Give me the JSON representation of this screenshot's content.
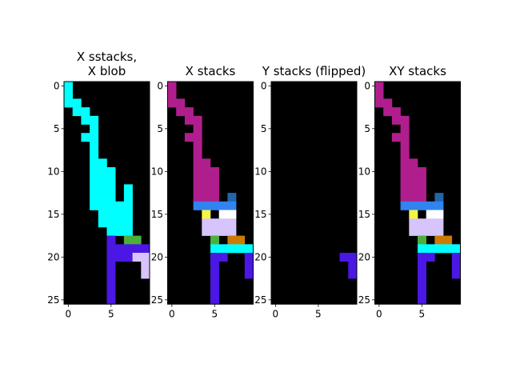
{
  "figure": {
    "background": "#ffffff",
    "panel_background": "#000000"
  },
  "chart_data": [
    {
      "type": "heatmap",
      "title_lines": [
        "X sstacks,",
        "X blob"
      ],
      "grid_shape": [
        26,
        10
      ],
      "xticks": [
        0,
        5
      ],
      "yticks": [
        0,
        5,
        10,
        15,
        20,
        25
      ],
      "cells": [
        {
          "x": 0,
          "y": 0,
          "w": 1,
          "h": 3,
          "color": "#00ffff"
        },
        {
          "x": 1,
          "y": 2,
          "w": 1,
          "h": 1,
          "color": "#00ffff"
        },
        {
          "x": 1,
          "y": 3,
          "w": 2,
          "h": 1,
          "color": "#00ffff"
        },
        {
          "x": 2,
          "y": 4,
          "w": 2,
          "h": 1,
          "color": "#00ffff"
        },
        {
          "x": 3,
          "y": 5,
          "w": 1,
          "h": 1,
          "color": "#00ffff"
        },
        {
          "x": 2,
          "y": 6,
          "w": 2,
          "h": 1,
          "color": "#00ffff"
        },
        {
          "x": 3,
          "y": 7,
          "w": 1,
          "h": 2,
          "color": "#00ffff"
        },
        {
          "x": 3,
          "y": 9,
          "w": 2,
          "h": 1,
          "color": "#00ffff"
        },
        {
          "x": 3,
          "y": 10,
          "w": 3,
          "h": 2,
          "color": "#00ffff"
        },
        {
          "x": 3,
          "y": 12,
          "w": 3,
          "h": 1,
          "color": "#00ffff"
        },
        {
          "x": 7,
          "y": 12,
          "w": 1,
          "h": 1,
          "color": "#00ffff"
        },
        {
          "x": 3,
          "y": 13,
          "w": 3,
          "h": 2,
          "color": "#00ffff"
        },
        {
          "x": 7,
          "y": 13,
          "w": 1,
          "h": 1,
          "color": "#00ffff"
        },
        {
          "x": 6,
          "y": 14,
          "w": 2,
          "h": 1,
          "color": "#00ffff"
        },
        {
          "x": 4,
          "y": 15,
          "w": 4,
          "h": 2,
          "color": "#00ffff"
        },
        {
          "x": 5,
          "y": 17,
          "w": 3,
          "h": 1,
          "color": "#00ffff"
        },
        {
          "x": 7,
          "y": 18,
          "w": 2,
          "h": 1,
          "color": "#4caf3a"
        },
        {
          "x": 5,
          "y": 18,
          "w": 1,
          "h": 1,
          "color": "#4a17e4"
        },
        {
          "x": 5,
          "y": 19,
          "w": 5,
          "h": 1,
          "color": "#4a17e4"
        },
        {
          "x": 5,
          "y": 20,
          "w": 3,
          "h": 1,
          "color": "#4a17e4"
        },
        {
          "x": 8,
          "y": 20,
          "w": 2,
          "h": 1,
          "color": "#d6c4fb"
        },
        {
          "x": 5,
          "y": 21,
          "w": 1,
          "h": 5,
          "color": "#4a17e4"
        },
        {
          "x": 9,
          "y": 21,
          "w": 1,
          "h": 2,
          "color": "#d6c4fb"
        }
      ]
    },
    {
      "type": "heatmap",
      "title_lines": [
        "X stacks"
      ],
      "grid_shape": [
        26,
        10
      ],
      "xticks": [
        0,
        5
      ],
      "yticks": [
        0,
        5,
        10,
        15,
        20,
        25
      ],
      "cells": [
        {
          "x": 0,
          "y": 0,
          "w": 1,
          "h": 3,
          "color": "#b01e8e"
        },
        {
          "x": 1,
          "y": 2,
          "w": 1,
          "h": 1,
          "color": "#b01e8e"
        },
        {
          "x": 1,
          "y": 3,
          "w": 2,
          "h": 1,
          "color": "#b01e8e"
        },
        {
          "x": 2,
          "y": 4,
          "w": 2,
          "h": 1,
          "color": "#b01e8e"
        },
        {
          "x": 3,
          "y": 5,
          "w": 1,
          "h": 1,
          "color": "#b01e8e"
        },
        {
          "x": 2,
          "y": 6,
          "w": 2,
          "h": 1,
          "color": "#b01e8e"
        },
        {
          "x": 3,
          "y": 7,
          "w": 1,
          "h": 2,
          "color": "#b01e8e"
        },
        {
          "x": 3,
          "y": 9,
          "w": 2,
          "h": 1,
          "color": "#b01e8e"
        },
        {
          "x": 3,
          "y": 10,
          "w": 3,
          "h": 2,
          "color": "#b01e8e"
        },
        {
          "x": 3,
          "y": 12,
          "w": 3,
          "h": 1,
          "color": "#b01e8e"
        },
        {
          "x": 3,
          "y": 13,
          "w": 3,
          "h": 1,
          "color": "#b01e8e"
        },
        {
          "x": 7,
          "y": 13,
          "w": 1,
          "h": 1,
          "color": "#2166ac"
        },
        {
          "x": 3,
          "y": 14,
          "w": 5,
          "h": 1,
          "color": "#3283f0"
        },
        {
          "x": 4,
          "y": 15,
          "w": 1,
          "h": 1,
          "color": "#f5f542"
        },
        {
          "x": 6,
          "y": 15,
          "w": 2,
          "h": 1,
          "color": "#ffffff"
        },
        {
          "x": 4,
          "y": 16,
          "w": 4,
          "h": 2,
          "color": "#d6c4fb"
        },
        {
          "x": 5,
          "y": 18,
          "w": 1,
          "h": 1,
          "color": "#4caf3a"
        },
        {
          "x": 7,
          "y": 18,
          "w": 2,
          "h": 1,
          "color": "#cc7a00"
        },
        {
          "x": 5,
          "y": 19,
          "w": 5,
          "h": 1,
          "color": "#00ffff"
        },
        {
          "x": 5,
          "y": 20,
          "w": 2,
          "h": 1,
          "color": "#4a17e4"
        },
        {
          "x": 9,
          "y": 20,
          "w": 1,
          "h": 1,
          "color": "#4a17e4"
        },
        {
          "x": 5,
          "y": 21,
          "w": 1,
          "h": 5,
          "color": "#4a17e4"
        },
        {
          "x": 9,
          "y": 21,
          "w": 1,
          "h": 2,
          "color": "#4a17e4"
        }
      ]
    },
    {
      "type": "heatmap",
      "title_lines": [
        "Y stacks (flipped)"
      ],
      "grid_shape": [
        26,
        10
      ],
      "xticks": [
        0,
        5
      ],
      "yticks": [
        0,
        5,
        10,
        15,
        20,
        25
      ],
      "cells": [
        {
          "x": 8,
          "y": 20,
          "w": 2,
          "h": 1,
          "color": "#4a17e4"
        },
        {
          "x": 9,
          "y": 21,
          "w": 1,
          "h": 2,
          "color": "#4a17e4"
        }
      ]
    },
    {
      "type": "heatmap",
      "title_lines": [
        "XY stacks"
      ],
      "grid_shape": [
        26,
        10
      ],
      "xticks": [
        0,
        5
      ],
      "yticks": [
        0,
        5,
        10,
        15,
        20,
        25
      ],
      "cells": [
        {
          "x": 0,
          "y": 0,
          "w": 1,
          "h": 3,
          "color": "#b01e8e"
        },
        {
          "x": 1,
          "y": 2,
          "w": 1,
          "h": 1,
          "color": "#b01e8e"
        },
        {
          "x": 1,
          "y": 3,
          "w": 2,
          "h": 1,
          "color": "#b01e8e"
        },
        {
          "x": 2,
          "y": 4,
          "w": 2,
          "h": 1,
          "color": "#b01e8e"
        },
        {
          "x": 3,
          "y": 5,
          "w": 1,
          "h": 1,
          "color": "#b01e8e"
        },
        {
          "x": 2,
          "y": 6,
          "w": 2,
          "h": 1,
          "color": "#b01e8e"
        },
        {
          "x": 3,
          "y": 7,
          "w": 1,
          "h": 2,
          "color": "#b01e8e"
        },
        {
          "x": 3,
          "y": 9,
          "w": 2,
          "h": 1,
          "color": "#b01e8e"
        },
        {
          "x": 3,
          "y": 10,
          "w": 3,
          "h": 2,
          "color": "#b01e8e"
        },
        {
          "x": 3,
          "y": 12,
          "w": 3,
          "h": 1,
          "color": "#b01e8e"
        },
        {
          "x": 3,
          "y": 13,
          "w": 3,
          "h": 1,
          "color": "#b01e8e"
        },
        {
          "x": 7,
          "y": 13,
          "w": 1,
          "h": 1,
          "color": "#2166ac"
        },
        {
          "x": 3,
          "y": 14,
          "w": 5,
          "h": 1,
          "color": "#3283f0"
        },
        {
          "x": 4,
          "y": 15,
          "w": 1,
          "h": 1,
          "color": "#f5f542"
        },
        {
          "x": 6,
          "y": 15,
          "w": 2,
          "h": 1,
          "color": "#ffffff"
        },
        {
          "x": 4,
          "y": 16,
          "w": 4,
          "h": 2,
          "color": "#d6c4fb"
        },
        {
          "x": 5,
          "y": 18,
          "w": 1,
          "h": 1,
          "color": "#4caf3a"
        },
        {
          "x": 7,
          "y": 18,
          "w": 2,
          "h": 1,
          "color": "#cc7a00"
        },
        {
          "x": 5,
          "y": 19,
          "w": 5,
          "h": 1,
          "color": "#00ffff"
        },
        {
          "x": 5,
          "y": 20,
          "w": 2,
          "h": 1,
          "color": "#4a17e4"
        },
        {
          "x": 9,
          "y": 20,
          "w": 1,
          "h": 1,
          "color": "#4a17e4"
        },
        {
          "x": 5,
          "y": 21,
          "w": 1,
          "h": 5,
          "color": "#4a17e4"
        },
        {
          "x": 9,
          "y": 21,
          "w": 1,
          "h": 2,
          "color": "#4a17e4"
        }
      ]
    }
  ]
}
